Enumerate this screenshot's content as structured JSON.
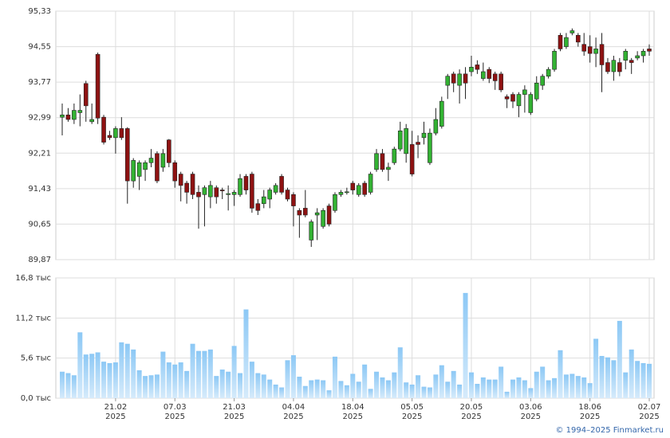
{
  "chart_data": [
    {
      "type": "candlestick",
      "open": [
        93.0,
        93.05,
        92.95,
        93.1,
        93.74,
        92.9,
        94.38,
        93.0,
        92.6,
        92.55,
        92.75,
        92.75,
        91.6,
        91.7,
        91.85,
        92.0,
        92.2,
        91.9,
        92.5,
        92.0,
        91.75,
        91.55,
        91.75,
        91.35,
        91.3,
        91.25,
        91.45,
        91.4,
        91.3,
        91.3,
        91.3,
        91.7,
        91.75,
        91.1,
        91.1,
        91.2,
        91.35,
        91.7,
        91.4,
        91.3,
        90.95,
        91.0,
        90.3,
        90.85,
        90.6,
        91.05,
        90.95,
        91.3,
        91.35,
        91.55,
        91.3,
        91.55,
        91.35,
        91.85,
        92.2,
        91.85,
        92.0,
        92.3,
        92.2,
        92.4,
        92.45,
        92.55,
        92.0,
        92.65,
        92.8,
        93.7,
        93.95,
        93.7,
        93.95,
        94.0,
        94.15,
        93.85,
        94.05,
        93.95,
        93.95,
        93.45,
        93.5,
        93.25,
        93.5,
        93.1,
        93.4,
        93.7,
        93.9,
        94.05,
        94.8,
        94.55,
        94.85,
        94.8,
        94.6,
        94.55,
        94.4,
        94.6,
        94.2,
        94.0,
        94.2,
        94.25,
        94.25,
        94.3,
        94.35,
        94.5
      ],
      "high": [
        93.3,
        93.2,
        93.3,
        93.5,
        93.8,
        93.3,
        94.42,
        93.05,
        92.7,
        92.8,
        93.0,
        92.78,
        92.1,
        92.05,
        92.05,
        92.3,
        92.25,
        92.3,
        92.52,
        92.05,
        91.8,
        91.6,
        91.8,
        91.5,
        91.5,
        91.6,
        91.5,
        91.45,
        91.5,
        91.4,
        91.75,
        91.75,
        91.8,
        91.2,
        91.4,
        91.45,
        91.55,
        91.75,
        91.45,
        91.35,
        91.0,
        91.4,
        90.75,
        91.0,
        91.0,
        91.1,
        91.35,
        91.4,
        91.45,
        91.6,
        91.55,
        91.6,
        91.8,
        92.3,
        92.3,
        92.0,
        92.35,
        92.9,
        92.85,
        92.7,
        92.6,
        92.9,
        92.75,
        93.2,
        93.45,
        93.95,
        94.0,
        94.05,
        94.1,
        94.35,
        94.25,
        94.2,
        94.1,
        94.0,
        94.0,
        93.5,
        93.55,
        93.55,
        93.7,
        93.55,
        93.9,
        93.95,
        94.1,
        94.5,
        94.85,
        94.85,
        94.95,
        94.85,
        94.85,
        94.8,
        94.75,
        94.85,
        94.3,
        94.35,
        94.3,
        94.5,
        94.3,
        94.45,
        94.5,
        94.6
      ],
      "low": [
        92.6,
        92.9,
        92.85,
        92.8,
        92.9,
        92.85,
        92.85,
        92.4,
        92.5,
        92.2,
        92.5,
        91.1,
        91.45,
        91.4,
        91.6,
        91.9,
        91.55,
        91.8,
        91.9,
        91.45,
        91.15,
        91.1,
        91.2,
        90.55,
        90.6,
        91.0,
        91.1,
        91.2,
        90.95,
        91.05,
        91.25,
        91.3,
        90.9,
        90.85,
        91.0,
        91.0,
        91.3,
        91.3,
        91.15,
        90.6,
        90.35,
        90.8,
        90.15,
        90.3,
        90.55,
        90.6,
        90.9,
        91.25,
        91.3,
        91.3,
        91.25,
        91.25,
        91.3,
        91.8,
        91.8,
        91.6,
        91.95,
        92.25,
        92.0,
        91.7,
        92.1,
        92.4,
        91.95,
        92.6,
        92.75,
        93.4,
        93.55,
        93.3,
        93.4,
        93.9,
        93.95,
        93.8,
        93.75,
        93.6,
        93.55,
        93.2,
        93.2,
        93.0,
        93.1,
        93.05,
        93.35,
        93.6,
        93.85,
        94.0,
        94.45,
        94.5,
        94.8,
        94.55,
        94.35,
        94.2,
        94.1,
        93.55,
        93.95,
        93.8,
        93.9,
        94.05,
        93.95,
        94.25,
        94.2,
        94.35
      ],
      "close": [
        93.05,
        92.95,
        93.15,
        93.15,
        93.25,
        92.95,
        92.98,
        92.45,
        92.55,
        92.75,
        92.55,
        91.6,
        92.05,
        92.0,
        92.0,
        92.1,
        91.6,
        92.2,
        92.0,
        91.6,
        91.5,
        91.35,
        91.3,
        91.25,
        91.45,
        91.5,
        91.25,
        91.38,
        91.32,
        91.35,
        91.65,
        91.4,
        91.0,
        90.95,
        91.25,
        91.4,
        91.5,
        91.35,
        91.2,
        91.05,
        90.85,
        90.85,
        90.7,
        90.9,
        90.95,
        90.65,
        91.3,
        91.35,
        91.36,
        91.4,
        91.5,
        91.3,
        91.75,
        92.2,
        91.85,
        91.9,
        92.3,
        92.7,
        92.75,
        91.75,
        92.4,
        92.65,
        92.65,
        92.95,
        93.35,
        93.9,
        93.75,
        93.95,
        93.75,
        94.1,
        94.05,
        94.0,
        93.85,
        93.8,
        93.6,
        93.4,
        93.35,
        93.5,
        93.6,
        93.5,
        93.75,
        93.9,
        94.05,
        94.45,
        94.5,
        94.75,
        94.9,
        94.65,
        94.45,
        94.4,
        94.5,
        94.15,
        94.0,
        94.25,
        94.0,
        94.45,
        94.2,
        94.35,
        94.45,
        94.45
      ],
      "up_color": "#33b233",
      "down_color": "#8e1212",
      "ylim": [
        89.87,
        95.33
      ],
      "yticks": [
        {
          "value": 89.87,
          "label": "89,87"
        },
        {
          "value": 90.65,
          "label": "90,65"
        },
        {
          "value": 91.43,
          "label": "91,43"
        },
        {
          "value": 92.21,
          "label": "92,21"
        },
        {
          "value": 92.99,
          "label": "92,99"
        },
        {
          "value": 93.77,
          "label": "93,77"
        },
        {
          "value": 94.55,
          "label": "94,55"
        },
        {
          "value": 95.33,
          "label": "95,33"
        }
      ],
      "grid": true
    },
    {
      "type": "bar",
      "categories": [
        null,
        null,
        null,
        null,
        null,
        null,
        null,
        null,
        null,
        "21.02\n2025",
        null,
        null,
        null,
        null,
        null,
        null,
        null,
        null,
        null,
        "07.03\n2025",
        null,
        null,
        null,
        null,
        null,
        null,
        null,
        null,
        null,
        "21.03\n2025",
        null,
        null,
        null,
        null,
        null,
        null,
        null,
        null,
        null,
        "04.04\n2025",
        null,
        null,
        null,
        null,
        null,
        null,
        null,
        null,
        null,
        "18.04\n2025",
        null,
        null,
        null,
        null,
        null,
        null,
        null,
        null,
        null,
        "05.05\n2025",
        null,
        null,
        null,
        null,
        null,
        null,
        null,
        null,
        null,
        "20.05\n2025",
        null,
        null,
        null,
        null,
        null,
        null,
        null,
        null,
        null,
        "03.06\n2025",
        null,
        null,
        null,
        null,
        null,
        null,
        null,
        null,
        null,
        "18.06\n2025",
        null,
        null,
        null,
        null,
        null,
        null,
        null,
        null,
        null,
        "02.07\n2025"
      ],
      "values": [
        3.7,
        3.5,
        3.2,
        9.2,
        6.1,
        6.2,
        6.4,
        5.1,
        4.9,
        5.0,
        7.8,
        7.6,
        6.8,
        3.9,
        3.1,
        3.2,
        3.3,
        6.5,
        5.0,
        4.7,
        5.0,
        3.8,
        7.6,
        6.6,
        6.6,
        6.8,
        3.1,
        4.0,
        3.7,
        7.3,
        3.5,
        12.4,
        5.1,
        3.5,
        3.3,
        2.6,
        1.9,
        1.5,
        5.3,
        6.0,
        3.0,
        1.7,
        2.5,
        2.6,
        2.5,
        1.1,
        5.8,
        2.4,
        1.8,
        3.4,
        2.3,
        4.7,
        1.3,
        3.7,
        2.9,
        2.5,
        3.6,
        7.1,
        2.2,
        1.9,
        3.2,
        1.6,
        1.5,
        3.3,
        4.6,
        2.3,
        3.8,
        1.9,
        14.7,
        3.6,
        2.0,
        2.9,
        2.6,
        2.6,
        4.4,
        0.9,
        2.6,
        2.9,
        2.5,
        1.4,
        3.7,
        4.4,
        2.5,
        2.8,
        6.7,
        3.3,
        3.4,
        3.1,
        2.9,
        2.1,
        8.3,
        5.9,
        5.7,
        5.3,
        10.8,
        3.6,
        6.8,
        5.2,
        4.9,
        4.8
      ],
      "color": "#8cc8f5",
      "ylim": [
        0,
        16.8
      ],
      "yticks": [
        {
          "value": 0,
          "label": "0,0 тыс"
        },
        {
          "value": 5.6,
          "label": "5,6 тыс"
        },
        {
          "value": 11.2,
          "label": "11,2 тыс"
        },
        {
          "value": 16.8,
          "label": "16,8 тыс"
        }
      ],
      "grid": true
    }
  ],
  "copyright": "© 1994–2025 Finmarket.ru"
}
